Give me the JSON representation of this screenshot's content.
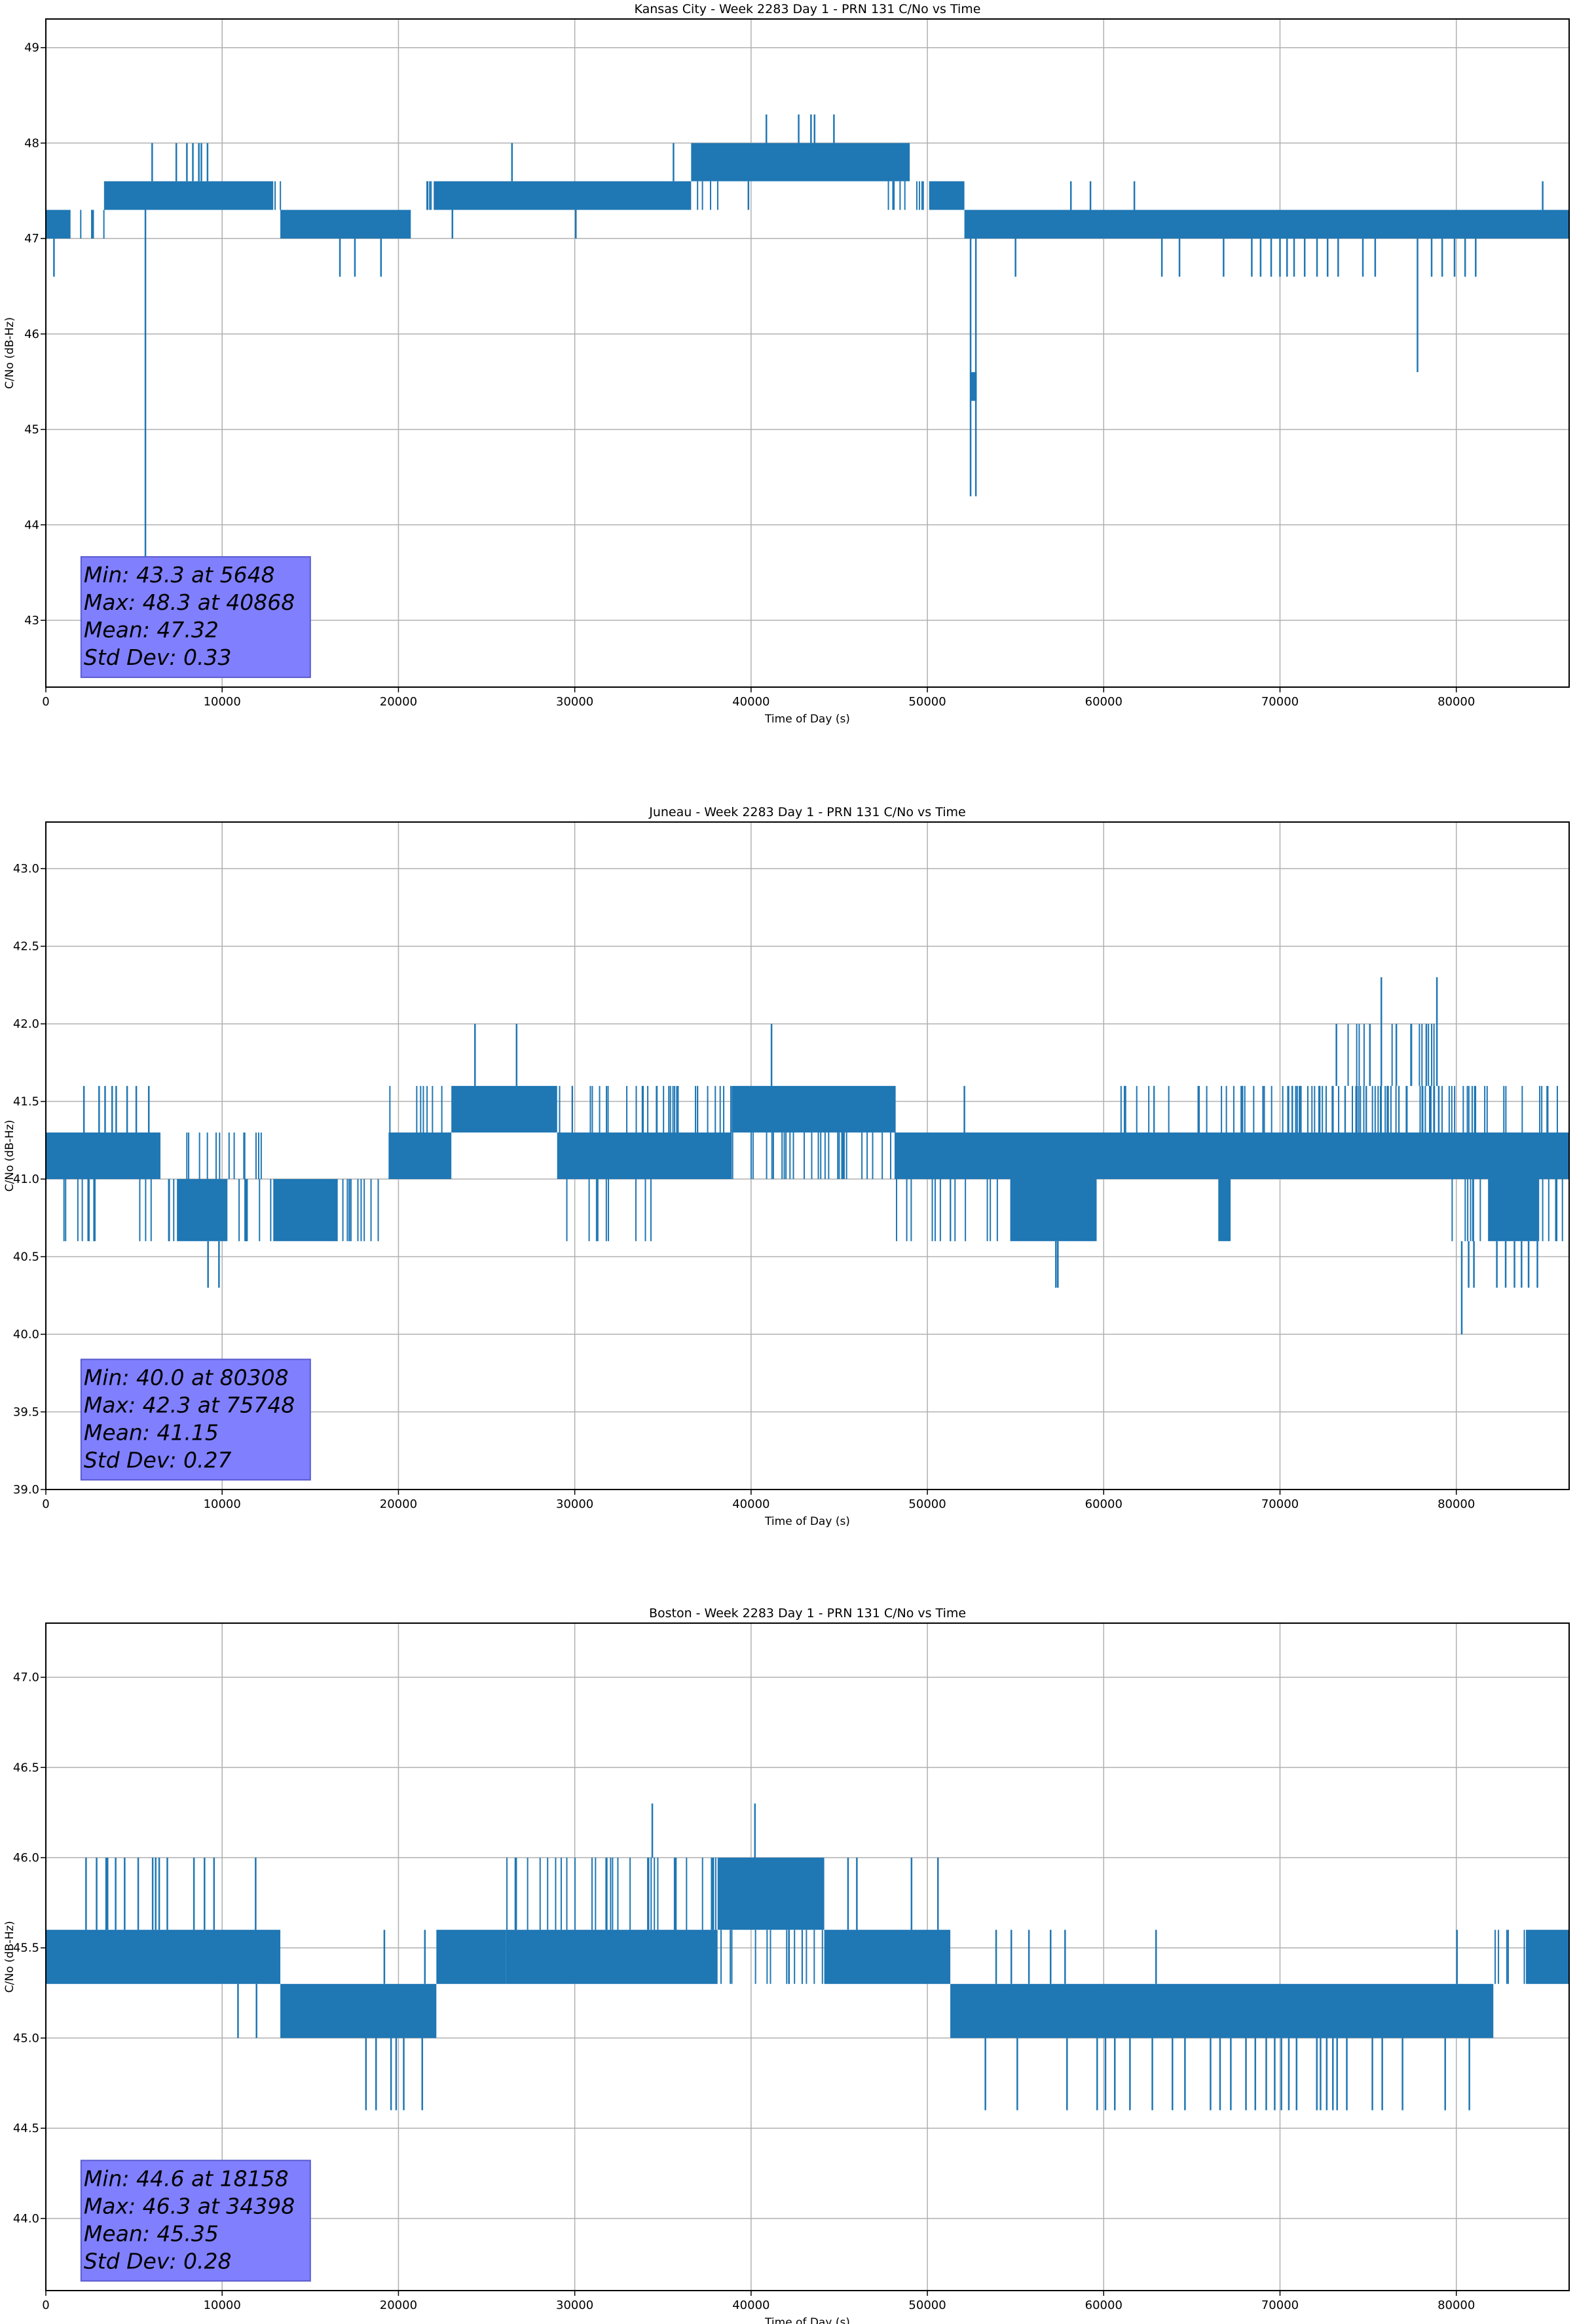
{
  "style": {
    "line_color": "#1f77b4",
    "grid_color": "#b0b0b0",
    "stats_box_fill": "#8080ff",
    "stats_box_edge": "#5a5ad0"
  },
  "chart_data": [
    {
      "type": "line",
      "title": "Kansas City - Week 2283 Day 1 - PRN 131 C/No vs Time",
      "xlabel": "Time of Day (s)",
      "ylabel": "C/No (dB-Hz)",
      "xlim": [
        0,
        86400
      ],
      "ylim": [
        42.3,
        49.3
      ],
      "grid": true,
      "xticks": [
        0,
        10000,
        20000,
        30000,
        40000,
        50000,
        60000,
        70000,
        80000
      ],
      "yticks": [
        43,
        44,
        45,
        46,
        47,
        48,
        49
      ],
      "ytick_labels": [
        "43",
        "44",
        "45",
        "46",
        "47",
        "48",
        "49"
      ],
      "stats": [
        "Min: 43.3 at 5648",
        "Max: 48.3 at 40868",
        "Mean: 47.32",
        "Std Dev: 0.33"
      ],
      "bands": [
        [
          0,
          1400,
          47.0,
          47.3,
          1
        ],
        [
          1400,
          3300,
          47.0,
          47.3,
          0.4
        ],
        [
          3300,
          12900,
          47.3,
          47.6,
          1
        ],
        [
          12900,
          13500,
          47.3,
          47.6,
          0.4
        ],
        [
          13300,
          20700,
          47.0,
          47.3,
          1
        ],
        [
          20700,
          22000,
          47.3,
          47.6,
          0.5
        ],
        [
          22000,
          36600,
          47.3,
          47.6,
          1
        ],
        [
          36600,
          49000,
          47.6,
          48.0,
          1
        ],
        [
          36600,
          38500,
          47.3,
          47.6,
          0.3
        ],
        [
          47500,
          50100,
          47.3,
          47.6,
          0.5
        ],
        [
          50100,
          52100,
          47.3,
          47.6,
          1
        ],
        [
          52100,
          86400,
          47.0,
          47.3,
          1
        ],
        [
          52450,
          52800,
          45.3,
          45.6,
          1
        ]
      ],
      "spikes": [
        [
          460,
          47.0,
          46.6
        ],
        [
          5648,
          47.3,
          43.3
        ],
        [
          6030,
          47.6,
          48.0
        ],
        [
          7400,
          47.6,
          48.0
        ],
        [
          8000,
          47.6,
          48.0
        ],
        [
          8340,
          47.6,
          48.0
        ],
        [
          8680,
          47.6,
          48.0
        ],
        [
          8820,
          47.6,
          48.0
        ],
        [
          9170,
          47.6,
          48.0
        ],
        [
          16680,
          47.0,
          46.6
        ],
        [
          17530,
          47.0,
          46.6
        ],
        [
          19010,
          47.0,
          46.6
        ],
        [
          23060,
          47.3,
          47.0
        ],
        [
          26440,
          47.6,
          48.0
        ],
        [
          30060,
          47.3,
          47.0
        ],
        [
          35600,
          47.6,
          48.0
        ],
        [
          39850,
          47.6,
          47.3
        ],
        [
          40868,
          48.0,
          48.3
        ],
        [
          42700,
          48.0,
          48.3
        ],
        [
          43400,
          48.0,
          48.3
        ],
        [
          43600,
          48.0,
          48.3
        ],
        [
          44700,
          48.0,
          48.3
        ],
        [
          52450,
          47.0,
          44.3
        ],
        [
          52750,
          47.0,
          44.3
        ],
        [
          55000,
          47.0,
          46.6
        ],
        [
          58140,
          47.3,
          47.6
        ],
        [
          59250,
          47.3,
          47.6
        ],
        [
          61740,
          47.3,
          47.6
        ],
        [
          63300,
          47.0,
          46.6
        ],
        [
          64300,
          47.0,
          46.6
        ],
        [
          66800,
          47.0,
          46.6
        ],
        [
          68400,
          47.0,
          46.6
        ],
        [
          68900,
          47.0,
          46.6
        ],
        [
          69500,
          47.0,
          46.6
        ],
        [
          70000,
          47.0,
          46.6
        ],
        [
          70400,
          47.0,
          46.6
        ],
        [
          70800,
          47.0,
          46.6
        ],
        [
          71400,
          47.0,
          46.6
        ],
        [
          72100,
          47.0,
          46.6
        ],
        [
          72700,
          47.0,
          46.6
        ],
        [
          73300,
          47.0,
          46.6
        ],
        [
          74700,
          47.0,
          46.6
        ],
        [
          75400,
          47.0,
          46.6
        ],
        [
          77800,
          47.0,
          45.6
        ],
        [
          78600,
          47.0,
          46.6
        ],
        [
          79200,
          47.0,
          46.6
        ],
        [
          79900,
          47.0,
          46.6
        ],
        [
          80500,
          47.0,
          46.6
        ],
        [
          81100,
          47.0,
          46.6
        ],
        [
          84900,
          47.3,
          47.6
        ]
      ]
    },
    {
      "type": "line",
      "title": "Juneau - Week 2283 Day 1 - PRN 131 C/No vs Time",
      "xlabel": "Time of Day (s)",
      "ylabel": "C/No (dB-Hz)",
      "xlim": [
        0,
        86400
      ],
      "ylim": [
        39.0,
        43.3
      ],
      "grid": true,
      "xticks": [
        0,
        10000,
        20000,
        30000,
        40000,
        50000,
        60000,
        70000,
        80000
      ],
      "yticks": [
        39.0,
        39.5,
        40.0,
        40.5,
        41.0,
        41.5,
        42.0,
        42.5,
        43.0
      ],
      "ytick_labels": [
        "39.0",
        "39.5",
        "40.0",
        "40.5",
        "41.0",
        "41.5",
        "42.0",
        "42.5",
        "43.0"
      ],
      "stats": [
        "Min: 40.0 at 80308",
        "Max: 42.3 at 75748",
        "Mean: 41.15",
        "Std Dev: 0.27"
      ],
      "bands": [
        [
          0,
          6500,
          41.0,
          41.3,
          1
        ],
        [
          0,
          6500,
          40.6,
          41.0,
          0.25
        ],
        [
          6500,
          7500,
          40.6,
          41.0,
          0.6
        ],
        [
          7500,
          10300,
          40.6,
          41.0,
          1
        ],
        [
          7500,
          12900,
          41.0,
          41.3,
          0.35
        ],
        [
          10300,
          12900,
          40.6,
          41.0,
          0.4
        ],
        [
          12900,
          16450,
          40.6,
          41.0,
          1
        ],
        [
          16450,
          19440,
          40.6,
          41.0,
          0.6
        ],
        [
          19440,
          23000,
          41.0,
          41.3,
          1
        ],
        [
          19440,
          23000,
          41.3,
          41.6,
          0.3
        ],
        [
          23000,
          29000,
          41.3,
          41.6,
          1
        ],
        [
          29000,
          38900,
          41.0,
          41.3,
          1
        ],
        [
          29000,
          38900,
          41.3,
          41.6,
          0.45
        ],
        [
          29500,
          35100,
          40.6,
          41.0,
          0.25
        ],
        [
          38900,
          48200,
          41.3,
          41.6,
          1
        ],
        [
          38900,
          48200,
          41.0,
          41.3,
          0.5
        ],
        [
          48200,
          86400,
          41.0,
          41.3,
          1
        ],
        [
          48200,
          54700,
          40.6,
          41.0,
          0.3
        ],
        [
          54700,
          59600,
          40.6,
          41.0,
          1
        ],
        [
          60300,
          67500,
          41.3,
          41.6,
          0.3
        ],
        [
          66500,
          67200,
          40.6,
          41.0,
          1
        ],
        [
          67500,
          79300,
          41.3,
          41.6,
          0.85
        ],
        [
          73100,
          79300,
          41.6,
          42.0,
          0.3
        ],
        [
          79300,
          86400,
          41.3,
          41.6,
          0.4
        ],
        [
          79500,
          81800,
          40.6,
          41.0,
          0.5
        ],
        [
          81800,
          84700,
          40.6,
          41.0,
          1
        ],
        [
          84700,
          86400,
          40.6,
          41.0,
          0.4
        ]
      ],
      "spikes": [
        [
          2160,
          41.3,
          41.6
        ],
        [
          3020,
          41.3,
          41.6
        ],
        [
          3360,
          41.3,
          41.6
        ],
        [
          3760,
          41.3,
          41.6
        ],
        [
          3990,
          41.3,
          41.6
        ],
        [
          4610,
          41.3,
          41.6
        ],
        [
          5130,
          41.3,
          41.6
        ],
        [
          5840,
          41.3,
          41.6
        ],
        [
          9200,
          40.6,
          40.3
        ],
        [
          9820,
          40.6,
          40.3
        ],
        [
          24340,
          41.6,
          42.0
        ],
        [
          26700,
          41.6,
          42.0
        ],
        [
          41160,
          41.6,
          42.0
        ],
        [
          52100,
          41.3,
          41.6
        ],
        [
          57290,
          40.6,
          40.3
        ],
        [
          57400,
          40.6,
          40.3
        ],
        [
          73200,
          41.6,
          42.0
        ],
        [
          75100,
          41.6,
          42.0
        ],
        [
          75748,
          41.6,
          42.3
        ],
        [
          76600,
          41.6,
          42.0
        ],
        [
          78300,
          41.6,
          42.0
        ],
        [
          78900,
          41.6,
          42.3
        ],
        [
          80308,
          40.6,
          40.0
        ],
        [
          80700,
          40.6,
          40.3
        ],
        [
          81000,
          40.6,
          40.3
        ],
        [
          82300,
          40.6,
          40.3
        ],
        [
          82800,
          40.6,
          40.3
        ],
        [
          83300,
          40.6,
          40.3
        ],
        [
          83700,
          40.6,
          40.3
        ],
        [
          84100,
          40.6,
          40.3
        ],
        [
          84600,
          40.6,
          40.3
        ]
      ]
    },
    {
      "type": "line",
      "title": "Boston - Week 2283 Day 1 - PRN 131 C/No vs Time",
      "xlabel": "Time of Day (s)",
      "ylabel": "C/No (dB-Hz)",
      "xlim": [
        0,
        86400
      ],
      "ylim": [
        43.6,
        47.3
      ],
      "grid": true,
      "xticks": [
        0,
        10000,
        20000,
        30000,
        40000,
        50000,
        60000,
        70000,
        80000
      ],
      "yticks": [
        44.0,
        44.5,
        45.0,
        45.5,
        46.0,
        46.5,
        47.0
      ],
      "ytick_labels": [
        "44.0",
        "44.5",
        "45.0",
        "45.5",
        "46.0",
        "46.5",
        "47.0"
      ],
      "stats": [
        "Min: 44.6 at 18158",
        "Max: 46.3 at 34398",
        "Mean: 45.35",
        "Std Dev: 0.28"
      ],
      "bands": [
        [
          0,
          13300,
          45.3,
          45.6,
          1
        ],
        [
          13300,
          22150,
          45.0,
          45.3,
          1
        ],
        [
          22150,
          26100,
          45.3,
          45.6,
          1
        ],
        [
          26100,
          38100,
          45.3,
          45.6,
          1
        ],
        [
          26100,
          38100,
          45.6,
          46.0,
          0.4
        ],
        [
          38100,
          44150,
          45.6,
          46.0,
          1
        ],
        [
          38100,
          44150,
          45.3,
          45.6,
          0.4
        ],
        [
          44150,
          51300,
          45.3,
          45.6,
          1
        ],
        [
          51300,
          82100,
          45.0,
          45.3,
          1
        ],
        [
          82100,
          84000,
          45.3,
          45.6,
          0.5
        ],
        [
          84000,
          86400,
          45.3,
          45.6,
          1
        ]
      ],
      "spikes": [
        [
          2280,
          45.6,
          46.0
        ],
        [
          2880,
          45.6,
          46.0
        ],
        [
          3420,
          45.6,
          46.0
        ],
        [
          3500,
          45.6,
          46.0
        ],
        [
          3960,
          45.6,
          46.0
        ],
        [
          4470,
          45.6,
          46.0
        ],
        [
          5240,
          45.6,
          46.0
        ],
        [
          6060,
          45.6,
          46.0
        ],
        [
          6230,
          45.6,
          46.0
        ],
        [
          6430,
          45.6,
          46.0
        ],
        [
          6890,
          45.6,
          46.0
        ],
        [
          8400,
          45.6,
          46.0
        ],
        [
          9000,
          45.6,
          46.0
        ],
        [
          9540,
          45.6,
          46.0
        ],
        [
          11900,
          45.6,
          46.0
        ],
        [
          10900,
          45.3,
          45.0
        ],
        [
          11950,
          45.3,
          45.0
        ],
        [
          18158,
          45.0,
          44.6
        ],
        [
          18730,
          45.0,
          44.6
        ],
        [
          19580,
          45.0,
          44.6
        ],
        [
          19870,
          45.0,
          44.6
        ],
        [
          20300,
          45.0,
          44.6
        ],
        [
          21350,
          45.0,
          44.6
        ],
        [
          19200,
          45.3,
          45.6
        ],
        [
          21500,
          45.3,
          45.6
        ],
        [
          34398,
          46.0,
          46.3
        ],
        [
          40220,
          46.0,
          46.3
        ],
        [
          45500,
          45.6,
          46.0
        ],
        [
          46000,
          45.6,
          46.0
        ],
        [
          49100,
          45.6,
          46.0
        ],
        [
          50600,
          45.6,
          46.0
        ],
        [
          53290,
          45.0,
          44.6
        ],
        [
          53900,
          45.3,
          45.6
        ],
        [
          54760,
          45.3,
          45.6
        ],
        [
          55100,
          45.0,
          44.6
        ],
        [
          55760,
          45.3,
          45.6
        ],
        [
          56990,
          45.3,
          45.6
        ],
        [
          57810,
          45.3,
          45.6
        ],
        [
          57920,
          45.0,
          44.6
        ],
        [
          59630,
          45.0,
          44.6
        ],
        [
          60100,
          45.0,
          44.6
        ],
        [
          60630,
          45.0,
          44.6
        ],
        [
          61490,
          45.0,
          44.6
        ],
        [
          62760,
          45.0,
          44.6
        ],
        [
          62970,
          45.3,
          45.6
        ],
        [
          63900,
          45.0,
          44.6
        ],
        [
          64610,
          45.0,
          44.6
        ],
        [
          66060,
          45.0,
          44.6
        ],
        [
          66600,
          45.0,
          44.6
        ],
        [
          67210,
          45.0,
          44.6
        ],
        [
          68070,
          45.0,
          44.6
        ],
        [
          68600,
          45.0,
          44.6
        ],
        [
          69220,
          45.0,
          44.6
        ],
        [
          69700,
          45.0,
          44.6
        ],
        [
          70080,
          45.0,
          44.6
        ],
        [
          70500,
          45.0,
          44.6
        ],
        [
          70940,
          45.0,
          44.6
        ],
        [
          72090,
          45.0,
          44.6
        ],
        [
          72300,
          45.0,
          44.6
        ],
        [
          72650,
          45.0,
          44.6
        ],
        [
          73000,
          45.0,
          44.6
        ],
        [
          73240,
          45.0,
          44.6
        ],
        [
          73790,
          45.0,
          44.6
        ],
        [
          75240,
          45.0,
          44.6
        ],
        [
          75800,
          45.0,
          44.6
        ],
        [
          76950,
          45.0,
          44.6
        ],
        [
          79370,
          45.0,
          44.6
        ],
        [
          80040,
          45.3,
          45.6
        ],
        [
          80740,
          45.0,
          44.6
        ]
      ]
    }
  ]
}
